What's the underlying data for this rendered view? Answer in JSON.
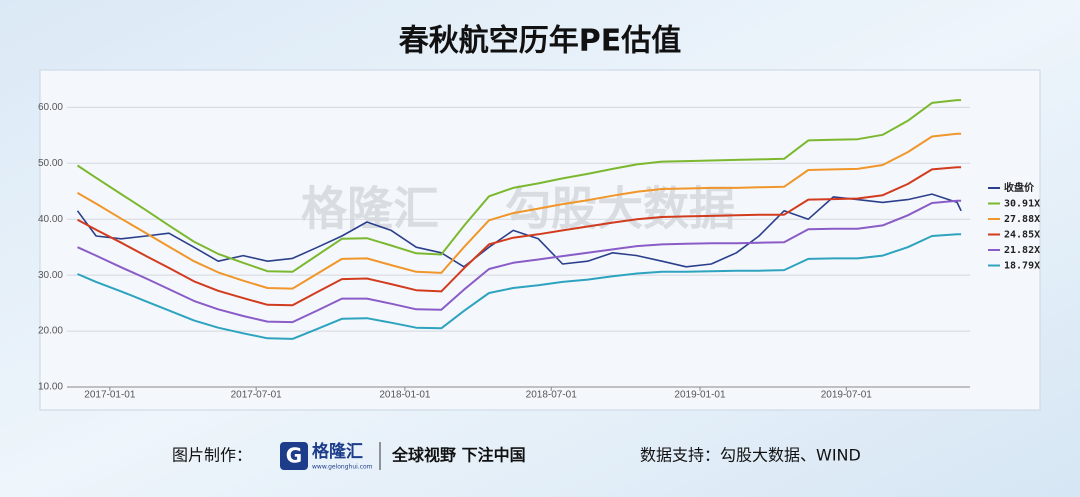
{
  "chart_data": {
    "type": "line",
    "title": "春秋航空历年PE估值",
    "watermark": [
      "格隆汇",
      "勾股大数据"
    ],
    "x": [
      "2016-11-22",
      "2016-12-15",
      "2017-01-15",
      "2017-02-15",
      "2017-03-15",
      "2017-04-15",
      "2017-05-15",
      "2017-06-15",
      "2017-07-15",
      "2017-08-15",
      "2017-09-15",
      "2017-10-15",
      "2017-11-15",
      "2017-12-15",
      "2018-01-15",
      "2018-02-15",
      "2018-03-15",
      "2018-04-15",
      "2018-05-15",
      "2018-06-15",
      "2018-07-15",
      "2018-08-15",
      "2018-09-15",
      "2018-10-15",
      "2018-11-15",
      "2018-12-15",
      "2019-01-15",
      "2019-02-15",
      "2019-03-15",
      "2019-04-15",
      "2019-05-15",
      "2019-06-15",
      "2019-07-15",
      "2019-08-15",
      "2019-09-15",
      "2019-10-15",
      "2019-11-15",
      "2019-11-20"
    ],
    "xlim": [
      "2016-11-09",
      "2019-12-01"
    ],
    "xticks": [
      "2017-01-01",
      "2017-07-01",
      "2018-01-01",
      "2018-07-01",
      "2019-01-01",
      "2019-07-01"
    ],
    "ylim": [
      10,
      64
    ],
    "yticks": [
      {
        "value": 10,
        "label": "10.00"
      },
      {
        "value": 20,
        "label": "20.00"
      },
      {
        "value": 30,
        "label": "30.00"
      },
      {
        "value": 40,
        "label": "40.00"
      },
      {
        "value": 50,
        "label": "50.00"
      },
      {
        "value": 60,
        "label": "60.00"
      }
    ],
    "grid": true,
    "legend": "right",
    "series": [
      {
        "name": "收盘价",
        "color": "#2b3f8c",
        "values": [
          41.5,
          37,
          36.5,
          37,
          37.5,
          35,
          32.5,
          33.5,
          32.5,
          33,
          35,
          37,
          39.5,
          38,
          35,
          34,
          31.5,
          35,
          38,
          36.5,
          32,
          32.5,
          34,
          33.5,
          32.5,
          31.5,
          32,
          34,
          37,
          41.5,
          40,
          44,
          43.5,
          43,
          43.5,
          44.5,
          43,
          41.5
        ]
      },
      {
        "name": "30.91X",
        "color": "#7cb82f",
        "values": [
          49.6,
          47.4,
          44.5,
          41.6,
          38.9,
          36.0,
          33.8,
          32.2,
          30.7,
          30.6,
          33.6,
          36.5,
          36.6,
          35.3,
          33.9,
          33.7,
          38.8,
          44.1,
          45.6,
          46.4,
          47.3,
          48.1,
          49.0,
          49.8,
          50.3,
          50.4,
          50.5,
          50.6,
          50.7,
          50.8,
          54.1,
          54.2,
          54.3,
          55.1,
          57.6,
          60.8,
          61.3,
          61.3
        ]
      },
      {
        "name": "27.88X",
        "color": "#f0962a",
        "values": [
          44.7,
          42.8,
          40.1,
          37.5,
          35.1,
          32.5,
          30.5,
          29.0,
          27.7,
          27.6,
          30.3,
          32.9,
          33.0,
          31.8,
          30.6,
          30.4,
          35.0,
          39.8,
          41.1,
          41.9,
          42.7,
          43.4,
          44.2,
          44.9,
          45.4,
          45.5,
          45.6,
          45.6,
          45.7,
          45.8,
          48.8,
          48.9,
          49.0,
          49.7,
          52.0,
          54.8,
          55.3,
          55.3
        ]
      },
      {
        "name": "24.85X",
        "color": "#d23c1e",
        "values": [
          39.9,
          38.1,
          35.8,
          33.4,
          31.3,
          28.9,
          27.2,
          25.9,
          24.7,
          24.6,
          27.0,
          29.3,
          29.4,
          28.4,
          27.3,
          27.1,
          31.2,
          35.5,
          36.7,
          37.3,
          38.0,
          38.7,
          39.4,
          40.0,
          40.4,
          40.5,
          40.6,
          40.7,
          40.8,
          40.8,
          43.5,
          43.6,
          43.7,
          44.3,
          46.3,
          48.9,
          49.3,
          49.3
        ]
      },
      {
        "name": "21.82X",
        "color": "#8a5cc7",
        "values": [
          35.0,
          33.5,
          31.4,
          29.4,
          27.5,
          25.4,
          23.9,
          22.7,
          21.7,
          21.6,
          23.7,
          25.8,
          25.8,
          24.9,
          23.9,
          23.8,
          27.4,
          31.1,
          32.2,
          32.8,
          33.4,
          34.0,
          34.6,
          35.2,
          35.5,
          35.6,
          35.7,
          35.7,
          35.8,
          35.9,
          38.2,
          38.3,
          38.3,
          38.9,
          40.7,
          42.9,
          43.3,
          43.3
        ]
      },
      {
        "name": "18.79X",
        "color": "#2ea3bf",
        "values": [
          30.2,
          28.8,
          27.1,
          25.3,
          23.7,
          21.9,
          20.6,
          19.6,
          18.7,
          18.6,
          20.4,
          22.2,
          22.3,
          21.5,
          20.6,
          20.5,
          23.6,
          26.8,
          27.7,
          28.2,
          28.8,
          29.2,
          29.8,
          30.3,
          30.6,
          30.6,
          30.7,
          30.8,
          30.8,
          30.9,
          32.9,
          33.0,
          33.0,
          33.5,
          35.0,
          37.0,
          37.3,
          37.3
        ]
      }
    ]
  },
  "footer": {
    "made_by": "图片制作：",
    "brand": "格隆汇",
    "site": "www.gelonghui.com",
    "slogan": "全球视野 下注中国",
    "source": "数据支持：勾股大数据、WIND"
  }
}
